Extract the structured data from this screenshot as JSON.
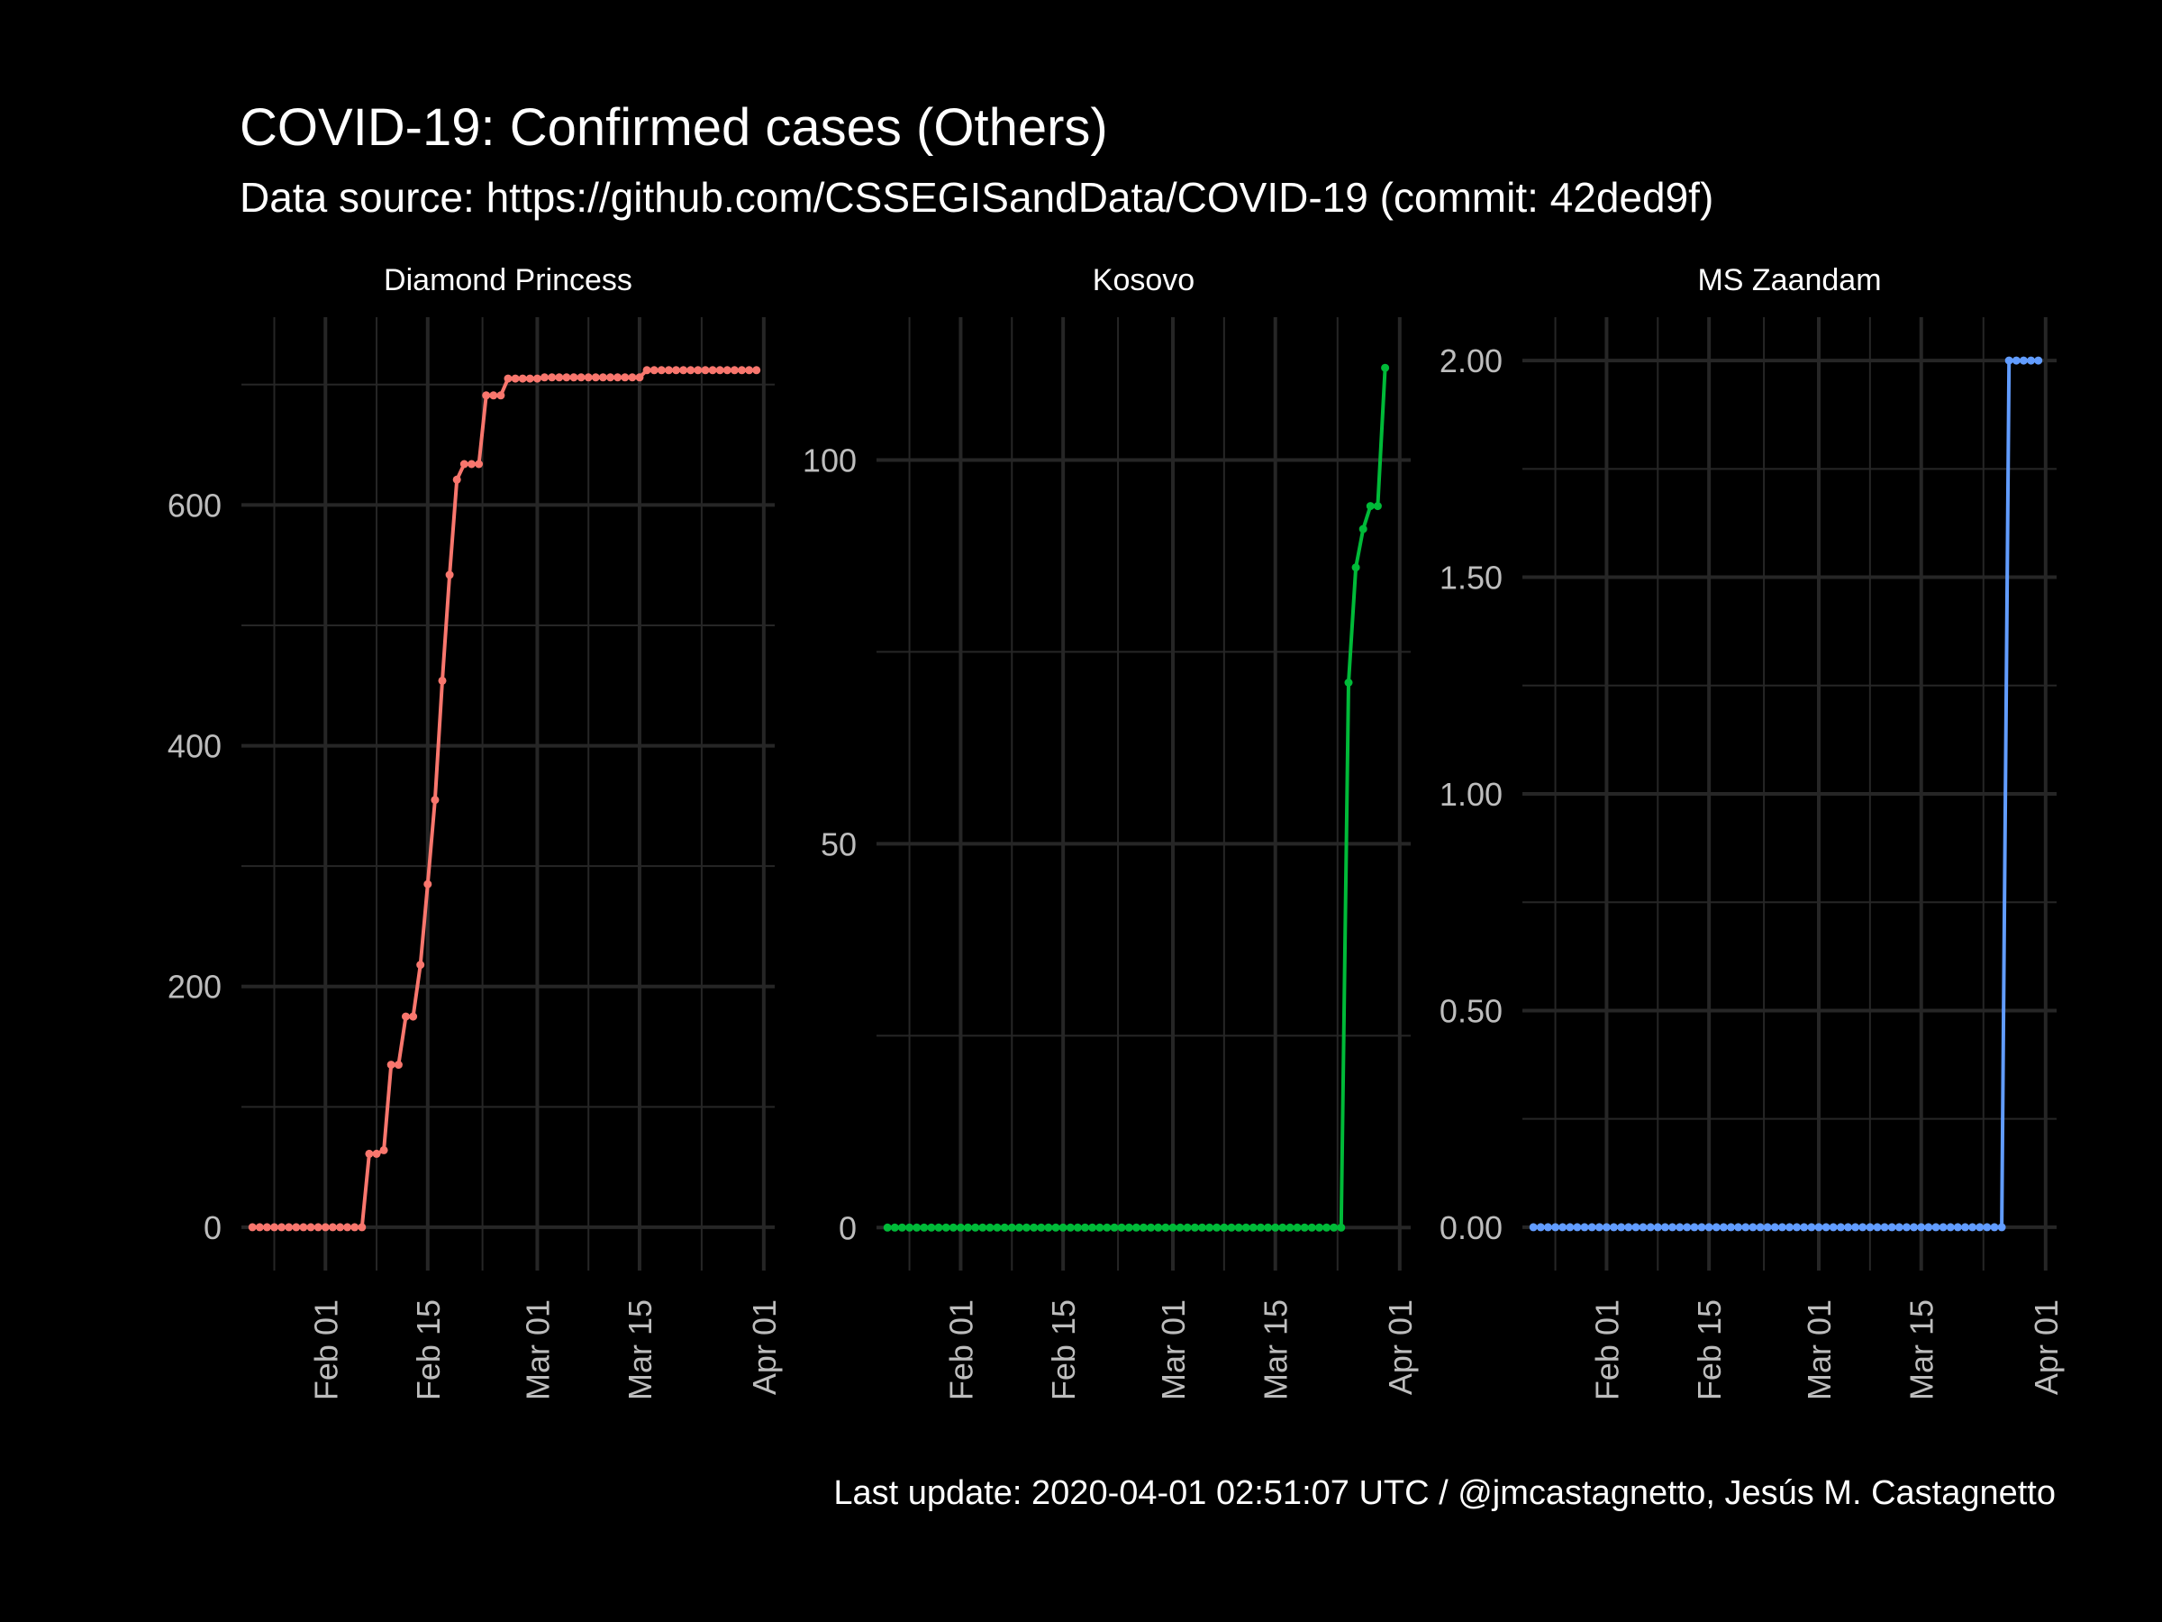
{
  "title": "COVID-19: Confirmed cases (Others)",
  "subtitle": "Data source: https://github.com/CSSEGISandData/COVID-19 (commit: 42ded9f)",
  "caption": "Last update:  2020-04-01 02:51:07 UTC / @jmcastagnetto, Jesús M. Castagnetto",
  "colors": {
    "background": "#000000",
    "grid": "#262626",
    "axis_text": "#bdbdbd",
    "strip_text": "#ffffff"
  },
  "chart_data": [
    {
      "type": "line",
      "facet": "Diamond Princess",
      "color": "#F8766D",
      "x_ticks": [
        "Feb 01",
        "Feb 15",
        "Mar 01",
        "Mar 15",
        "Apr 01"
      ],
      "y_ticks": [
        "0",
        "200",
        "400",
        "600"
      ],
      "ylim": [
        -36,
        756
      ],
      "x_start": "2020-01-22",
      "values": [
        0,
        0,
        0,
        0,
        0,
        0,
        0,
        0,
        0,
        0,
        0,
        0,
        0,
        0,
        0,
        0,
        61,
        61,
        64,
        135,
        135,
        175,
        175,
        218,
        285,
        355,
        454,
        542,
        621,
        634,
        634,
        634,
        691,
        691,
        691,
        705,
        705,
        705,
        705,
        705,
        706,
        706,
        706,
        706,
        706,
        706,
        706,
        706,
        706,
        706,
        706,
        706,
        706,
        706,
        712,
        712,
        712,
        712,
        712,
        712,
        712,
        712,
        712,
        712,
        712,
        712,
        712,
        712,
        712,
        712
      ]
    },
    {
      "type": "line",
      "facet": "Kosovo",
      "color": "#00BA38",
      "x_ticks": [
        "Feb 01",
        "Feb 15",
        "Mar 01",
        "Mar 15",
        "Apr 01"
      ],
      "y_ticks": [
        "0",
        "50",
        "100"
      ],
      "ylim": [
        -5.6,
        118.6
      ],
      "x_start": "2020-01-22",
      "values": [
        0,
        0,
        0,
        0,
        0,
        0,
        0,
        0,
        0,
        0,
        0,
        0,
        0,
        0,
        0,
        0,
        0,
        0,
        0,
        0,
        0,
        0,
        0,
        0,
        0,
        0,
        0,
        0,
        0,
        0,
        0,
        0,
        0,
        0,
        0,
        0,
        0,
        0,
        0,
        0,
        0,
        0,
        0,
        0,
        0,
        0,
        0,
        0,
        0,
        0,
        0,
        0,
        0,
        0,
        0,
        0,
        0,
        0,
        0,
        0,
        0,
        0,
        0,
        71,
        86,
        91,
        94,
        94,
        112
      ]
    },
    {
      "type": "line",
      "facet": "MS Zaandam",
      "color": "#619CFF",
      "x_ticks": [
        "Feb 01",
        "Feb 15",
        "Mar 01",
        "Mar 15",
        "Apr 01"
      ],
      "y_ticks": [
        "0.00",
        "0.50",
        "1.00",
        "1.50",
        "2.00"
      ],
      "ylim": [
        -0.1,
        2.1
      ],
      "x_start": "2020-01-22",
      "values": [
        0,
        0,
        0,
        0,
        0,
        0,
        0,
        0,
        0,
        0,
        0,
        0,
        0,
        0,
        0,
        0,
        0,
        0,
        0,
        0,
        0,
        0,
        0,
        0,
        0,
        0,
        0,
        0,
        0,
        0,
        0,
        0,
        0,
        0,
        0,
        0,
        0,
        0,
        0,
        0,
        0,
        0,
        0,
        0,
        0,
        0,
        0,
        0,
        0,
        0,
        0,
        0,
        0,
        0,
        0,
        0,
        0,
        0,
        0,
        0,
        0,
        0,
        0,
        0,
        0,
        2,
        2,
        2,
        2,
        2
      ]
    }
  ]
}
